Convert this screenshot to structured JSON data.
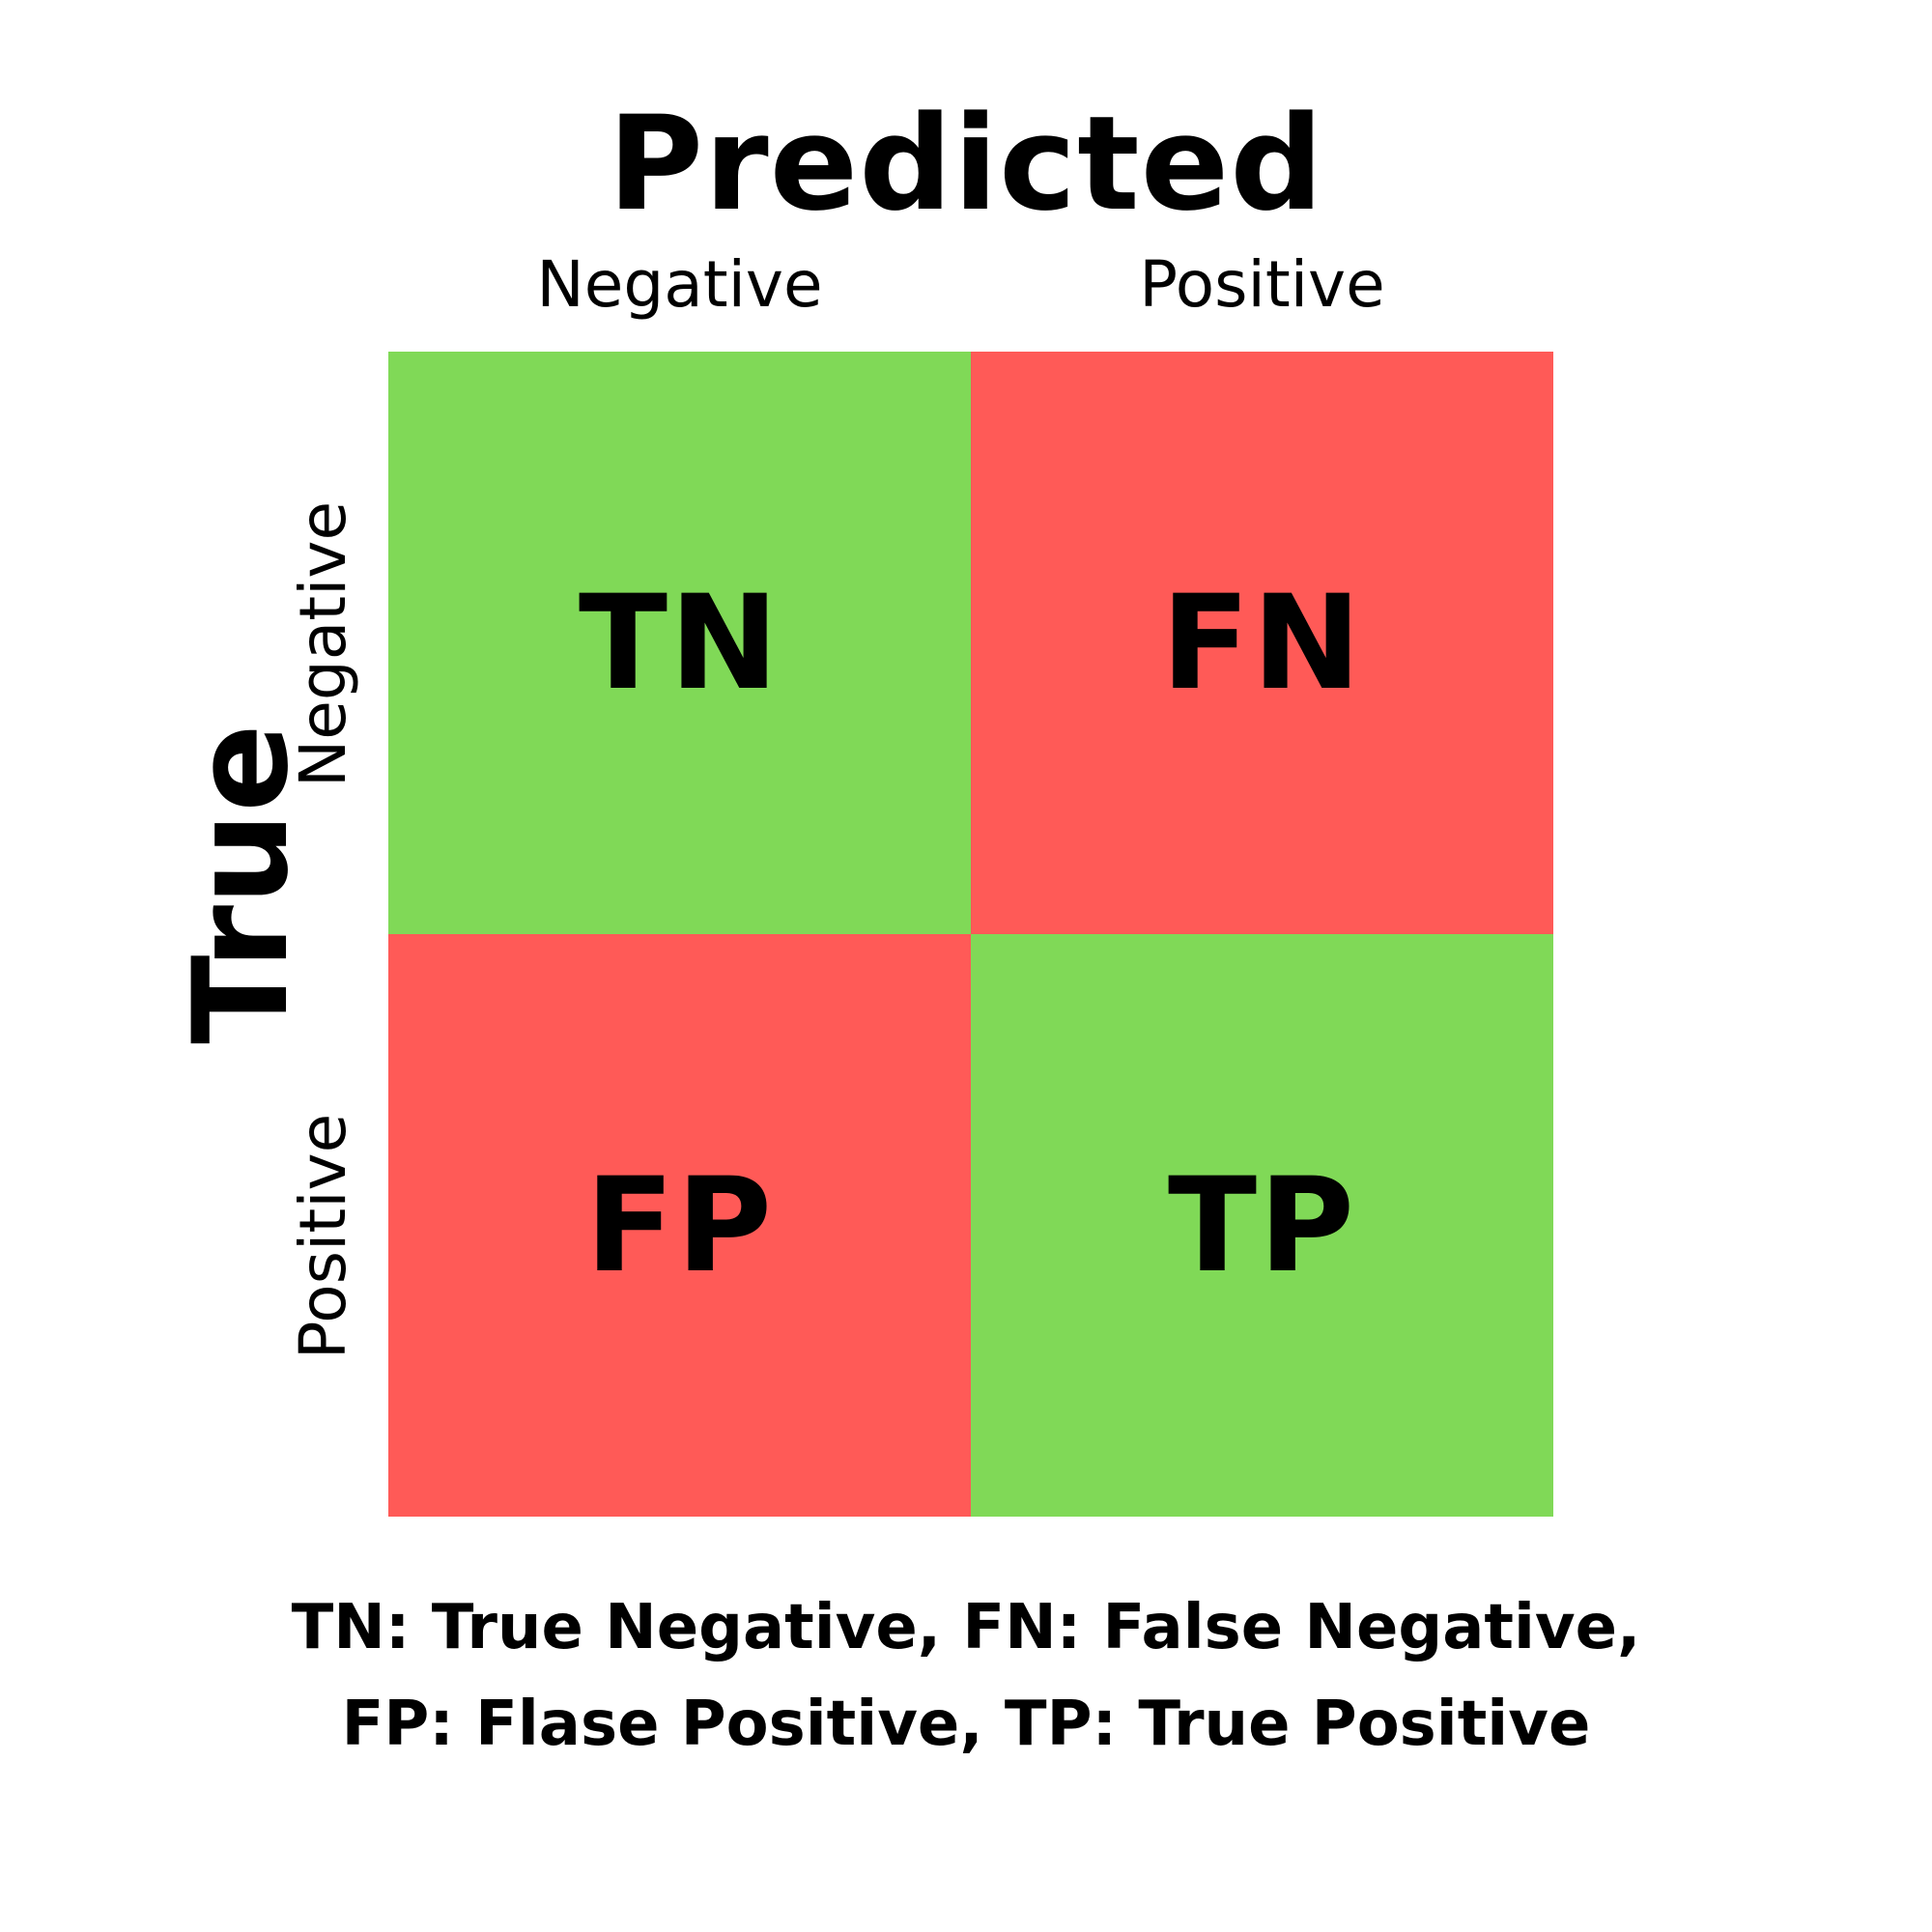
{
  "title_x": "Predicted",
  "title_y": "True",
  "columns": [
    "Negative",
    "Positive"
  ],
  "rows": [
    "Negative",
    "Positive"
  ],
  "cells": [
    {
      "label": "TN",
      "color": "#80d957"
    },
    {
      "label": "FN",
      "color": "#ff5a57"
    },
    {
      "label": "FP",
      "color": "#ff5a57"
    },
    {
      "label": "TP",
      "color": "#80d957"
    }
  ],
  "colors": {
    "correct": "#80d957",
    "incorrect": "#ff5a57"
  },
  "legend": {
    "line1": "TN: True Negative, FN: False Negative,",
    "line2": "FP: Flase Positive, TP: True Positive"
  }
}
